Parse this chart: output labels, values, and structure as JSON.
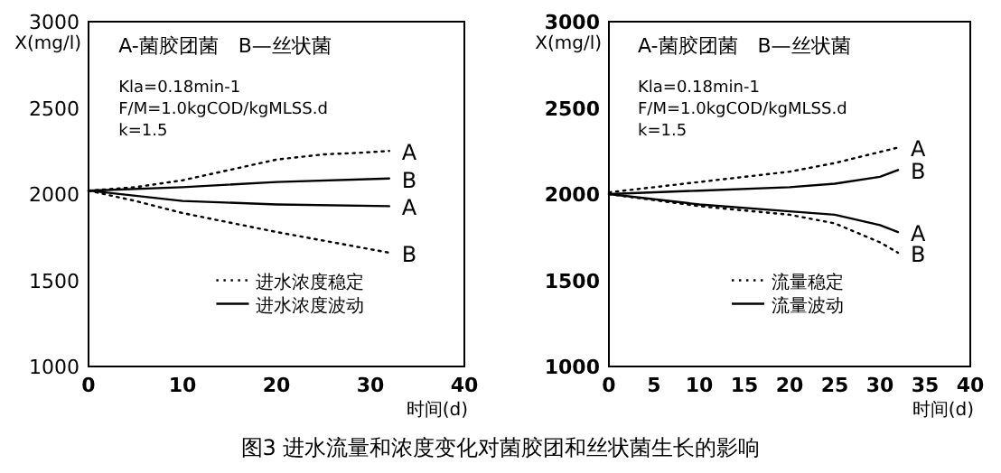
{
  "chart_data": [
    {
      "type": "line",
      "title": "图3 进水流量和浓度变化对菌胶团和丝状菌生长的影响",
      "xlabel": "时间(d)",
      "ylabel": "X(mg/l)",
      "xlim": [
        0,
        40
      ],
      "ylim": [
        1000,
        3000
      ],
      "xticks": [
        0,
        10,
        20,
        30,
        40
      ],
      "yticks": [
        1000,
        1500,
        2000,
        2500,
        3000
      ],
      "legend": "bottom",
      "grid": false,
      "annotations": [
        "A-菌胶团菌　B—丝状菌",
        "Kla=0.18min-1",
        "F/M=1.0kgCOD/kgMLSS.d",
        "k=1.5",
        "A",
        "B",
        "A",
        "B"
      ],
      "series": [
        {
          "name": "进水浓度稳定",
          "color": "#000000",
          "line_style": "dotted",
          "x": [
            0,
            5,
            10,
            15,
            20,
            25,
            29,
            32
          ],
          "values": [
            2020,
            2040,
            2080,
            2140,
            2200,
            2230,
            2240,
            2250
          ]
        },
        {
          "name": "进水浓度波动",
          "color": "#000000",
          "line_style": "solid",
          "x": [
            0,
            10,
            20,
            32
          ],
          "values": [
            2020,
            2040,
            2070,
            2090
          ]
        },
        {
          "color": "#000000",
          "line_style": "solid",
          "x": [
            0,
            5,
            10,
            20,
            32
          ],
          "values": [
            2020,
            1990,
            1960,
            1940,
            1930
          ]
        },
        {
          "color": "#000000",
          "line_style": "dotted",
          "x": [
            0,
            5,
            10,
            20,
            25,
            32
          ],
          "values": [
            2020,
            1960,
            1890,
            1780,
            1730,
            1660
          ]
        }
      ]
    },
    {
      "type": "line",
      "xlabel": "时间(d)",
      "ylabel": "X(mg/l)",
      "xlim": [
        0,
        40
      ],
      "ylim": [
        1000,
        3000
      ],
      "xticks": [
        0,
        5,
        10,
        15,
        20,
        25,
        30,
        35,
        40
      ],
      "yticks": [
        1000,
        1500,
        2000,
        2500,
        3000
      ],
      "legend": "bottom",
      "grid": false,
      "annotations": [
        "A-菌胶团菌　B—丝状菌",
        "Kla=0.18min-1",
        "F/M=1.0kgCOD/kgMLSS.d",
        "k=1.5",
        "A",
        "B",
        "A",
        "B"
      ],
      "series": [
        {
          "name": "流量稳定",
          "color": "#000000",
          "line_style": "dotted",
          "x": [
            0,
            10,
            20,
            25,
            32
          ],
          "values": [
            2010,
            2070,
            2130,
            2180,
            2270
          ]
        },
        {
          "name": "流量波动",
          "color": "#000000",
          "line_style": "solid",
          "x": [
            0,
            10,
            20,
            25,
            30,
            32
          ],
          "values": [
            2000,
            2020,
            2040,
            2060,
            2100,
            2140
          ]
        },
        {
          "color": "#000000",
          "line_style": "solid",
          "x": [
            0,
            10,
            20,
            25,
            30,
            32
          ],
          "values": [
            2000,
            1940,
            1900,
            1880,
            1820,
            1780
          ]
        },
        {
          "color": "#000000",
          "line_style": "dotted",
          "x": [
            0,
            10,
            20,
            25,
            30,
            32
          ],
          "values": [
            2000,
            1930,
            1880,
            1830,
            1720,
            1660
          ]
        }
      ]
    }
  ]
}
